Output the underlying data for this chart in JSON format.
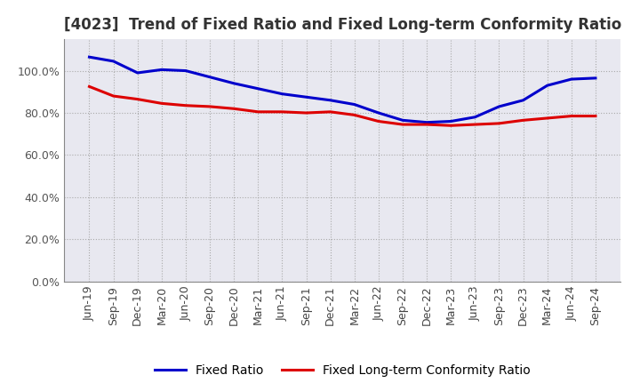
{
  "title": "[4023]  Trend of Fixed Ratio and Fixed Long-term Conformity Ratio",
  "x_labels": [
    "Jun-19",
    "Sep-19",
    "Dec-19",
    "Mar-20",
    "Jun-20",
    "Sep-20",
    "Dec-20",
    "Mar-21",
    "Jun-21",
    "Sep-21",
    "Dec-21",
    "Mar-22",
    "Jun-22",
    "Sep-22",
    "Dec-22",
    "Mar-23",
    "Jun-23",
    "Sep-23",
    "Dec-23",
    "Mar-24",
    "Jun-24",
    "Sep-24"
  ],
  "fixed_ratio": [
    106.5,
    104.5,
    99.0,
    100.5,
    100.0,
    97.0,
    94.0,
    91.5,
    89.0,
    87.5,
    86.0,
    84.0,
    80.0,
    76.5,
    75.5,
    76.0,
    78.0,
    83.0,
    86.0,
    93.0,
    96.0,
    96.5
  ],
  "fixed_lt_ratio": [
    92.5,
    88.0,
    86.5,
    84.5,
    83.5,
    83.0,
    82.0,
    80.5,
    80.5,
    80.0,
    80.5,
    79.0,
    76.0,
    74.5,
    74.5,
    74.0,
    74.5,
    75.0,
    76.5,
    77.5,
    78.5,
    78.5
  ],
  "fixed_ratio_color": "#0000CC",
  "fixed_lt_ratio_color": "#DD0000",
  "background_color": "#FFFFFF",
  "plot_bg_color": "#E8E8F0",
  "grid_color": "#AAAAAA",
  "ylim": [
    0,
    115
  ],
  "yticks": [
    0,
    20,
    40,
    60,
    80,
    100
  ],
  "title_fontsize": 12,
  "legend_fontsize": 10,
  "tick_fontsize": 9,
  "line_width": 2.2
}
